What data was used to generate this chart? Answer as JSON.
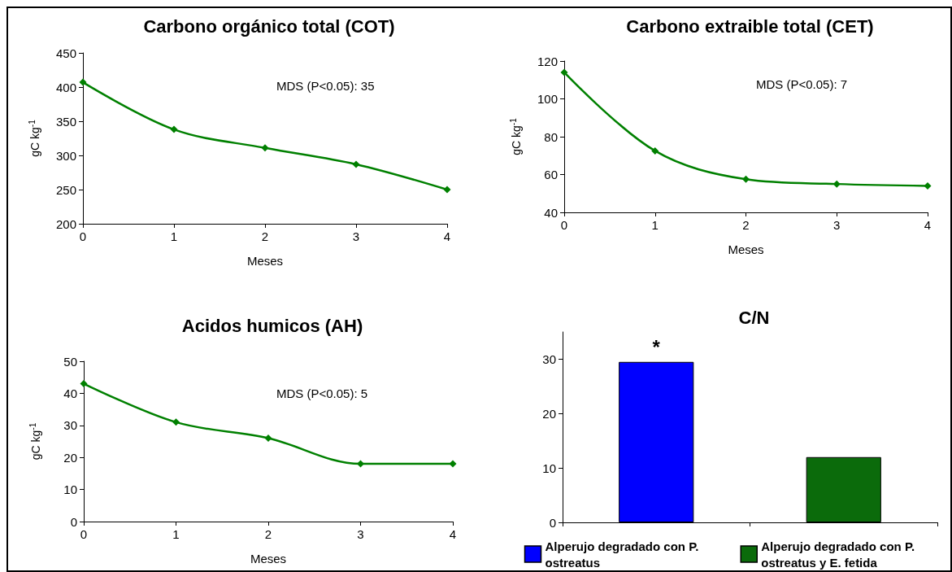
{
  "chart_data": [
    {
      "type": "line",
      "title": "Carbono orgánico total (COT)",
      "xlabel": "Meses",
      "ylabel": "gC kg$^{-1}$",
      "x": [
        0,
        1,
        2,
        3,
        4
      ],
      "series": [
        {
          "color": "#008000",
          "values": [
            407,
            338,
            311,
            287,
            250
          ]
        }
      ],
      "xlim": [
        0,
        4
      ],
      "xticks": [
        0,
        1,
        2,
        3,
        4
      ],
      "ylim": [
        200,
        450
      ],
      "yticks": [
        200,
        250,
        300,
        350,
        400,
        450
      ],
      "marker": "diamond",
      "grid": false,
      "legend": false,
      "annotations": [
        "MDS (P<0.05): 35"
      ]
    },
    {
      "type": "line",
      "title": "Carbono extraible total (CET)",
      "xlabel": "Meses",
      "ylabel": "gC kg$^{-1}$",
      "x": [
        0,
        1,
        2,
        3,
        4
      ],
      "series": [
        {
          "color": "#008000",
          "values": [
            114,
            72.5,
            57.5,
            55,
            54
          ]
        }
      ],
      "xlim": [
        0,
        4
      ],
      "xticks": [
        0,
        1,
        2,
        3,
        4
      ],
      "ylim": [
        40,
        120
      ],
      "yticks": [
        40,
        60,
        80,
        100,
        120
      ],
      "marker": "diamond",
      "grid": false,
      "legend": false,
      "annotations": [
        "MDS (P<0.05): 7"
      ]
    },
    {
      "type": "line",
      "title": "Acidos humicos (AH)",
      "xlabel": "Meses",
      "ylabel": "gC kg$^{-1}$",
      "x": [
        0,
        1,
        2,
        3,
        4
      ],
      "series": [
        {
          "color": "#008000",
          "values": [
            43,
            31,
            26,
            18,
            18
          ]
        }
      ],
      "xlim": [
        0,
        4
      ],
      "xticks": [
        0,
        1,
        2,
        3,
        4
      ],
      "ylim": [
        0,
        50
      ],
      "yticks": [
        0,
        10,
        20,
        30,
        40,
        50
      ],
      "marker": "diamond",
      "grid": false,
      "legend": false,
      "annotations": [
        "MDS (P<0.05): 5"
      ]
    },
    {
      "type": "bar",
      "title": "C/N",
      "categories": [
        null,
        null
      ],
      "stacked": true,
      "series": [
        {
          "name": "Alperujo degradado con P. ostreatus",
          "color": "#0000ff",
          "values": [
            29.5,
            null
          ]
        },
        {
          "name": "Alperujo degradado con P. ostreatus y E. fetida",
          "color": "#0b6b0b",
          "values": [
            null,
            12
          ]
        }
      ],
      "ylim": [
        0,
        35
      ],
      "yticks": [
        0,
        10,
        20,
        30
      ],
      "grid": false,
      "legend": "bottom",
      "annotations": [
        {
          "text": "*",
          "y": 29.5
        }
      ]
    }
  ]
}
